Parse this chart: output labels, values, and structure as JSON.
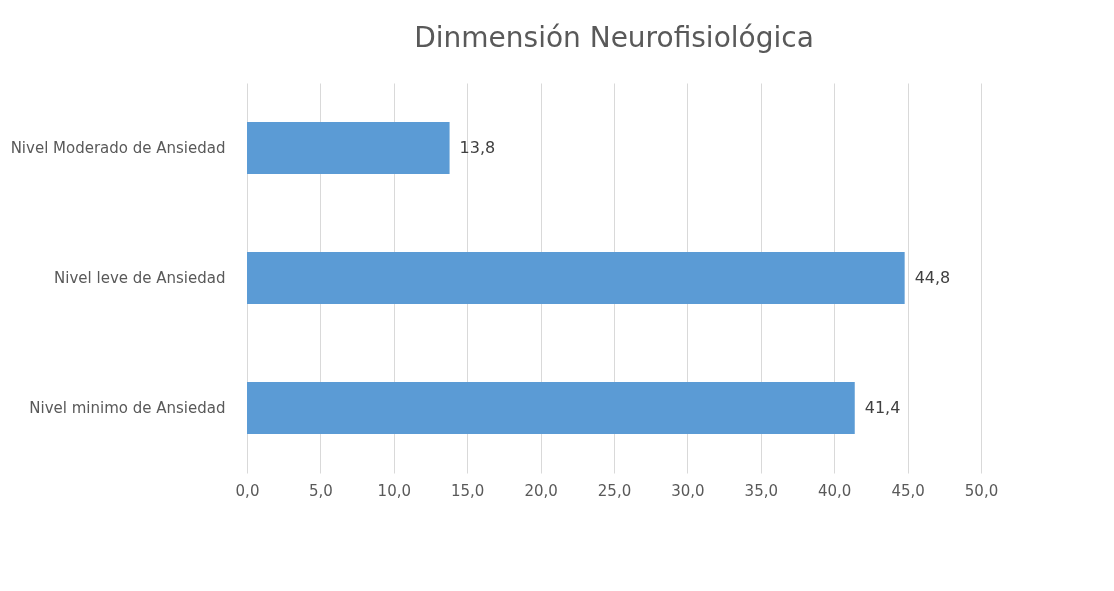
{
  "chart_data": {
    "type": "bar",
    "orientation": "horizontal",
    "title": "Dinmensión Neurofisiológica",
    "categories": [
      "Nivel Moderado de Ansiedad",
      "Nivel leve de Ansiedad",
      "Nivel minimo de Ansiedad"
    ],
    "values": [
      13.8,
      44.8,
      41.4
    ],
    "value_labels": [
      "13,8",
      "44,8",
      "41,4"
    ],
    "color": "#5b9bd5",
    "xlim": [
      0,
      50
    ],
    "xticks": [
      {
        "value": 0,
        "label": "0,0"
      },
      {
        "value": 5,
        "label": "5,0"
      },
      {
        "value": 10,
        "label": "10,0"
      },
      {
        "value": 15,
        "label": "15,0"
      },
      {
        "value": 20,
        "label": "20,0"
      },
      {
        "value": 25,
        "label": "25,0"
      },
      {
        "value": 30,
        "label": "30,0"
      },
      {
        "value": 35,
        "label": "35,0"
      },
      {
        "value": 40,
        "label": "40,0"
      },
      {
        "value": 45,
        "label": "45,0"
      },
      {
        "value": 50,
        "label": "50,0"
      }
    ],
    "grid": "x"
  }
}
